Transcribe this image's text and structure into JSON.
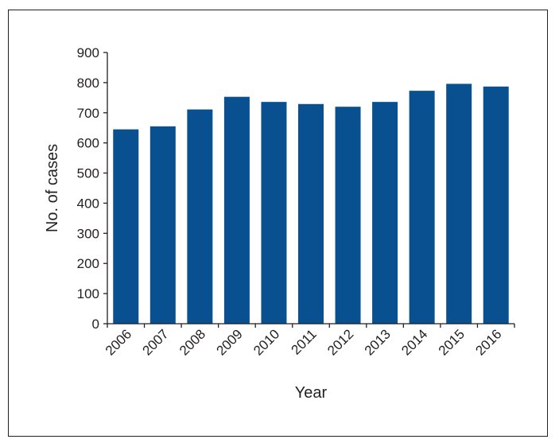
{
  "chart_data": {
    "type": "bar",
    "title": "",
    "xlabel": "Year",
    "ylabel": "No. of cases",
    "categories": [
      "2006",
      "2007",
      "2008",
      "2009",
      "2010",
      "2011",
      "2012",
      "2013",
      "2014",
      "2015",
      "2016"
    ],
    "values": [
      645,
      655,
      711,
      753,
      736,
      729,
      720,
      736,
      773,
      796,
      787
    ],
    "ylim": [
      0,
      900
    ],
    "yticks": [
      0,
      100,
      200,
      300,
      400,
      500,
      600,
      700,
      800,
      900
    ],
    "grid": false,
    "legend": "none",
    "bar_color": "#08508f"
  }
}
